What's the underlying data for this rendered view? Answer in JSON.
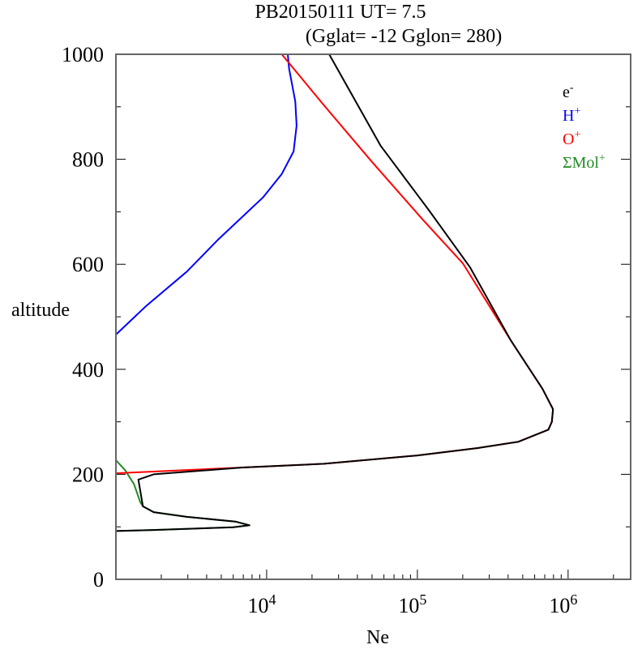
{
  "chart_data": {
    "type": "line",
    "title": "PB20150111   UT=  7.5",
    "subtitle": "(Gglat= -12   Gglon=  280)",
    "xlabel": "Ne",
    "ylabel": "altitude",
    "xscale": "log",
    "xlim": [
      1000,
      2600000
    ],
    "ylim": [
      0,
      1000
    ],
    "xticks": [
      {
        "value": 10000,
        "base": "10",
        "exp": "4"
      },
      {
        "value": 100000,
        "base": "10",
        "exp": "5"
      },
      {
        "value": 1000000,
        "base": "10",
        "exp": "6"
      }
    ],
    "yticks": [
      "0",
      "200",
      "400",
      "600",
      "800",
      "1000"
    ],
    "grid": false,
    "legend_placement": "top-right",
    "series": [
      {
        "name": "e",
        "name_sup": "-",
        "color": "#000000",
        "points": [
          [
            26000,
            1000
          ],
          [
            57000,
            826
          ],
          [
            120000,
            702
          ],
          [
            224000,
            594
          ],
          [
            417000,
            455
          ],
          [
            676000,
            363
          ],
          [
            794000,
            324
          ],
          [
            780000,
            300
          ],
          [
            740000,
            285
          ],
          [
            468000,
            262
          ],
          [
            251000,
            250
          ],
          [
            100000,
            236
          ],
          [
            24000,
            220
          ],
          [
            6900,
            213
          ],
          [
            1780,
            200
          ],
          [
            1410,
            190
          ],
          [
            1510,
            139
          ],
          [
            1780,
            128
          ],
          [
            2950,
            119
          ],
          [
            6200,
            110
          ],
          [
            7700,
            103
          ],
          [
            6000,
            99
          ],
          [
            1780,
            94
          ],
          [
            1000,
            92
          ]
        ]
      },
      {
        "name": "H",
        "name_sup": "+",
        "color": "#0000ff",
        "points": [
          [
            1000,
            466
          ],
          [
            1580,
            520
          ],
          [
            2950,
            586
          ],
          [
            4800,
            648
          ],
          [
            9500,
            728
          ],
          [
            12600,
            772
          ],
          [
            15100,
            815
          ],
          [
            15800,
            864
          ],
          [
            15500,
            910
          ],
          [
            14100,
            972
          ],
          [
            13800,
            1000
          ]
        ]
      },
      {
        "name": "O",
        "name_sup": "+",
        "color": "#ff0000",
        "points": [
          [
            12600,
            1000
          ],
          [
            24000,
            903
          ],
          [
            50000,
            795
          ],
          [
            107000,
            687
          ],
          [
            200000,
            602
          ],
          [
            417000,
            455
          ],
          [
            676000,
            363
          ],
          [
            794000,
            324
          ],
          [
            780000,
            300
          ],
          [
            740000,
            285
          ],
          [
            468000,
            262
          ],
          [
            251000,
            250
          ],
          [
            100000,
            236
          ],
          [
            24000,
            220
          ],
          [
            6900,
            213
          ],
          [
            1000,
            202
          ]
        ]
      },
      {
        "name": "ΣMol",
        "name_sup": "+",
        "color": "#228b22",
        "points": [
          [
            1000,
            227
          ],
          [
            1150,
            208
          ],
          [
            1320,
            181
          ],
          [
            1450,
            147
          ],
          [
            1510,
            139
          ],
          [
            1780,
            128
          ],
          [
            2950,
            119
          ],
          [
            6200,
            110
          ],
          [
            7700,
            103
          ],
          [
            6000,
            99
          ],
          [
            1780,
            94
          ],
          [
            1000,
            92
          ]
        ]
      }
    ]
  }
}
